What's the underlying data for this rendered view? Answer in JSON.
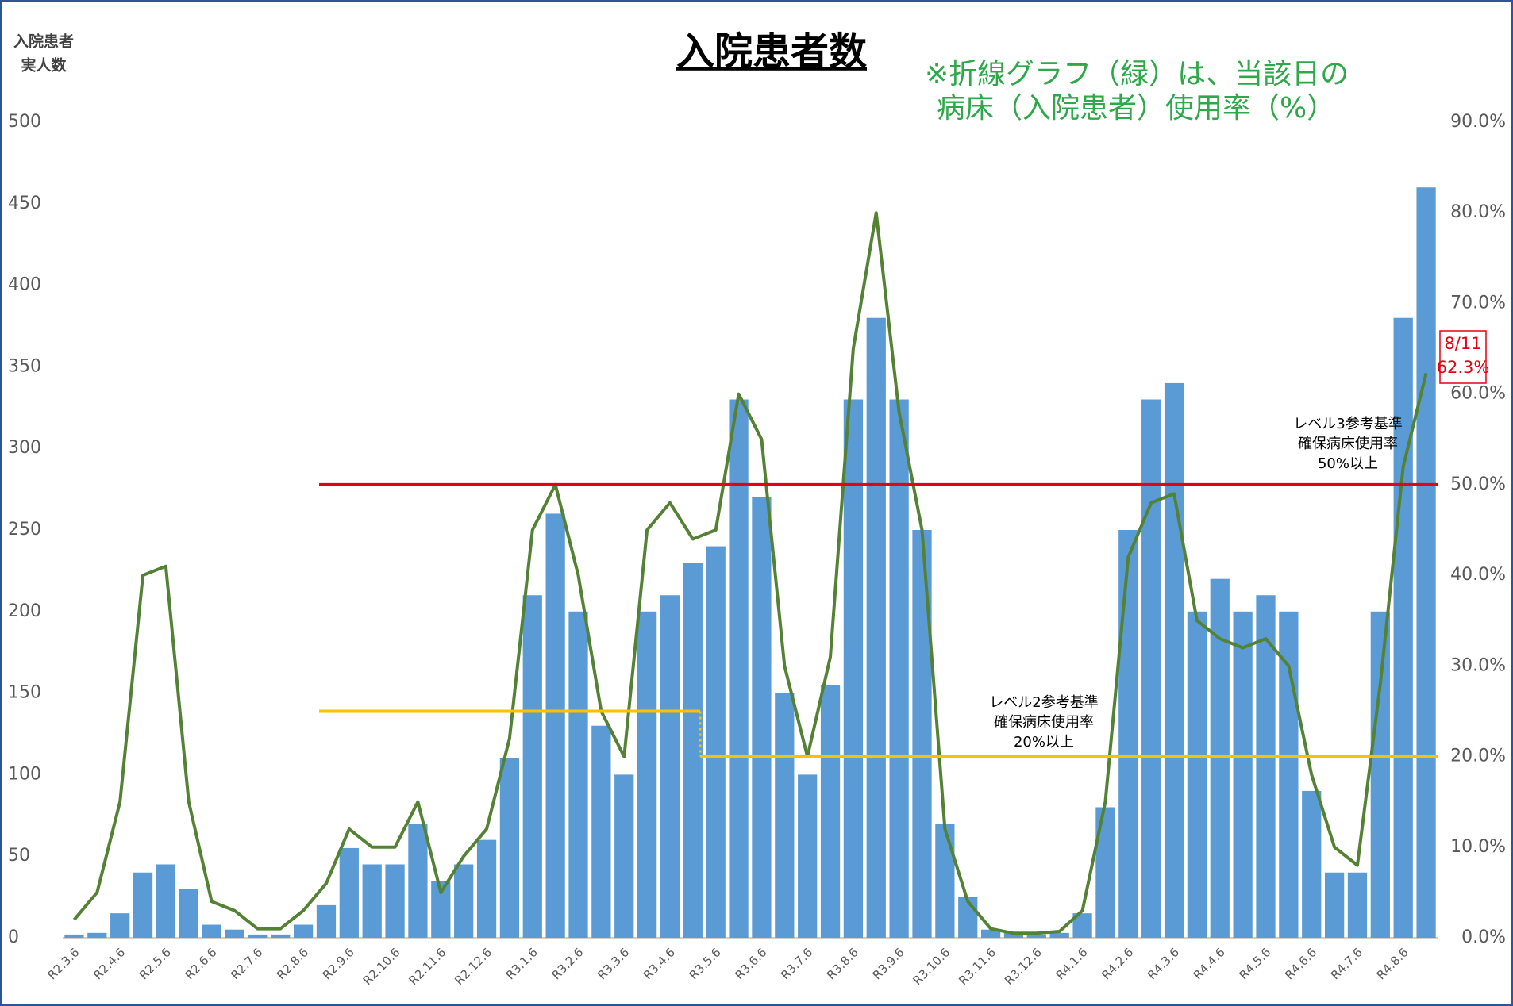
{
  "chart_data": {
    "type": "bar",
    "title": "入院患者数",
    "note": [
      "※折線グラフ（緑）は、当該日の",
      "病床（入院患者）使用率（%）"
    ],
    "y_label": [
      "入院患者",
      "実人数"
    ],
    "categories": [
      "R2.3.6",
      null,
      "R2.4.6",
      null,
      "R2.5.6",
      null,
      "R2.6.6",
      null,
      "R2.7.6",
      null,
      "R2.8.6",
      null,
      "R2.9.6",
      null,
      "R2.10.6",
      null,
      "R2.11.6",
      null,
      "R2.12.6",
      null,
      "R3.1.6",
      null,
      "R3.2.6",
      null,
      "R3.3.6",
      null,
      "R3.4.6",
      null,
      "R3.5.6",
      null,
      "R3.6.6",
      null,
      "R3.7.6",
      null,
      "R3.8.6",
      null,
      "R3.9.6",
      null,
      "R3.10.6",
      null,
      "R3.11.6",
      null,
      "R3.12.6",
      null,
      "R4.1.6",
      null,
      "R4.2.6",
      null,
      "R4.3.6",
      null,
      "R4.4.6",
      null,
      "R4.5.6",
      null,
      "R4.6.6",
      null,
      "R4.7.6",
      null,
      "R4.8.6",
      null
    ],
    "series": [
      {
        "type": "bar",
        "color": "#5b9bd5",
        "values": [
          2,
          3,
          15,
          40,
          45,
          30,
          8,
          5,
          2,
          2,
          8,
          20,
          55,
          45,
          45,
          70,
          35,
          45,
          60,
          110,
          210,
          260,
          200,
          130,
          100,
          200,
          210,
          230,
          240,
          330,
          270,
          150,
          100,
          155,
          330,
          380,
          330,
          250,
          70,
          25,
          5,
          3,
          2,
          3,
          15,
          80,
          250,
          330,
          340,
          200,
          220,
          200,
          210,
          200,
          90,
          40,
          40,
          200,
          380,
          460
        ]
      },
      {
        "type": "line",
        "axis": "y2",
        "color": "#548235",
        "values": [
          2,
          5,
          15,
          40,
          41,
          15,
          4,
          3,
          1,
          1,
          3,
          6,
          12,
          10,
          10,
          15,
          5,
          9,
          12,
          22,
          45,
          50,
          40,
          25,
          20,
          45,
          48,
          44,
          45,
          60,
          55,
          30,
          20,
          31,
          65,
          80,
          58,
          45,
          12,
          4,
          1,
          0.5,
          0.5,
          0.7,
          3,
          15,
          42,
          48,
          49,
          35,
          33,
          32,
          33,
          30,
          18,
          10,
          8,
          28,
          52,
          62.3
        ]
      }
    ],
    "ylim": [
      0,
      500
    ],
    "yticks": [
      0,
      50,
      100,
      150,
      200,
      250,
      300,
      350,
      400,
      450,
      500
    ],
    "y2lim": [
      0,
      90
    ],
    "y2ticks": [
      {
        "value": 0,
        "label": "0.0%"
      },
      {
        "value": 10,
        "label": "10.0%"
      },
      {
        "value": 20,
        "label": "20.0%"
      },
      {
        "value": 30,
        "label": "30.0%"
      },
      {
        "value": 40,
        "label": "40.0%"
      },
      {
        "value": 50,
        "label": "50.0%"
      },
      {
        "value": 60,
        "label": "60.0%"
      },
      {
        "value": 70,
        "label": "70.0%"
      },
      {
        "value": 80,
        "label": "80.0%"
      },
      {
        "value": 90,
        "label": "90.0%"
      }
    ],
    "reference_lines": [
      {
        "value": 50,
        "color": "#e60012",
        "label": [
          "レベル3参考基準",
          "確保病床使用率",
          "50%以上"
        ]
      },
      {
        "value": 25,
        "color": "#ffc000"
      },
      {
        "value": 20,
        "color": "#ffc000",
        "label": [
          "レベル2参考基準",
          "確保病床使用率",
          "20%以上"
        ]
      }
    ],
    "callout": [
      "8/11",
      "62.3%"
    ]
  }
}
